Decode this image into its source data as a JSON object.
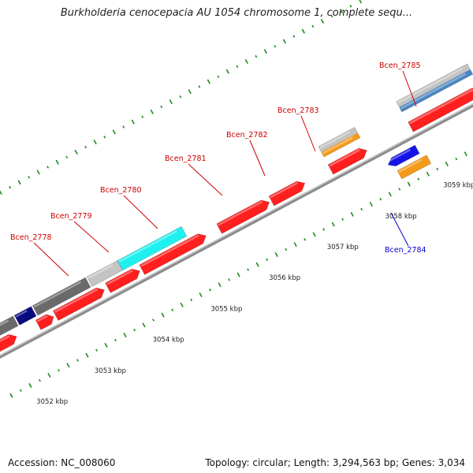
{
  "header": {
    "title": "Burkholderia cenocepacia AU 1054 chromosome 1, complete sequ..."
  },
  "footer": {
    "accession": "Accession: NC_008060",
    "summary": "Topology: circular; Length: 3,294,563 bp; Genes: 3,034"
  },
  "colors": {
    "backbone": "#7a7a7a",
    "tick": "#1f8a1f",
    "cds": "#ff1f1f",
    "label_forward": "#cc0000",
    "label_reverse": "#0000cc",
    "rna_blue": "#1414e6",
    "orange": "#f59a1a",
    "cyan": "#1ef0f0",
    "dark_gray": "#6a6a6a",
    "light_gray": "#c4c4c4",
    "navy": "#0a0a80",
    "steel_blue": "#4a86c2"
  },
  "kbp_labels": [
    {
      "text": "3052 kbp",
      "pos": 3052
    },
    {
      "text": "3053 kbp",
      "pos": 3053
    },
    {
      "text": "3054 kbp",
      "pos": 3054
    },
    {
      "text": "3055 kbp",
      "pos": 3055
    },
    {
      "text": "3056 kbp",
      "pos": 3056
    },
    {
      "text": "3057 kbp",
      "pos": 3057
    },
    {
      "text": "3058 kbp",
      "pos": 3058
    },
    {
      "text": "3059 kbp",
      "pos": 3059
    }
  ],
  "gene_labels": [
    {
      "text": "Bcen_2778",
      "strand": "forward"
    },
    {
      "text": "Bcen_2779",
      "strand": "forward"
    },
    {
      "text": "Bcen_2780",
      "strand": "forward"
    },
    {
      "text": "Bcen_2781",
      "strand": "forward"
    },
    {
      "text": "Bcen_2782",
      "strand": "forward"
    },
    {
      "text": "Bcen_2783",
      "strand": "forward"
    },
    {
      "text": "Bcen_2784",
      "strand": "reverse"
    },
    {
      "text": "Bcen_2785",
      "strand": "forward"
    }
  ]
}
